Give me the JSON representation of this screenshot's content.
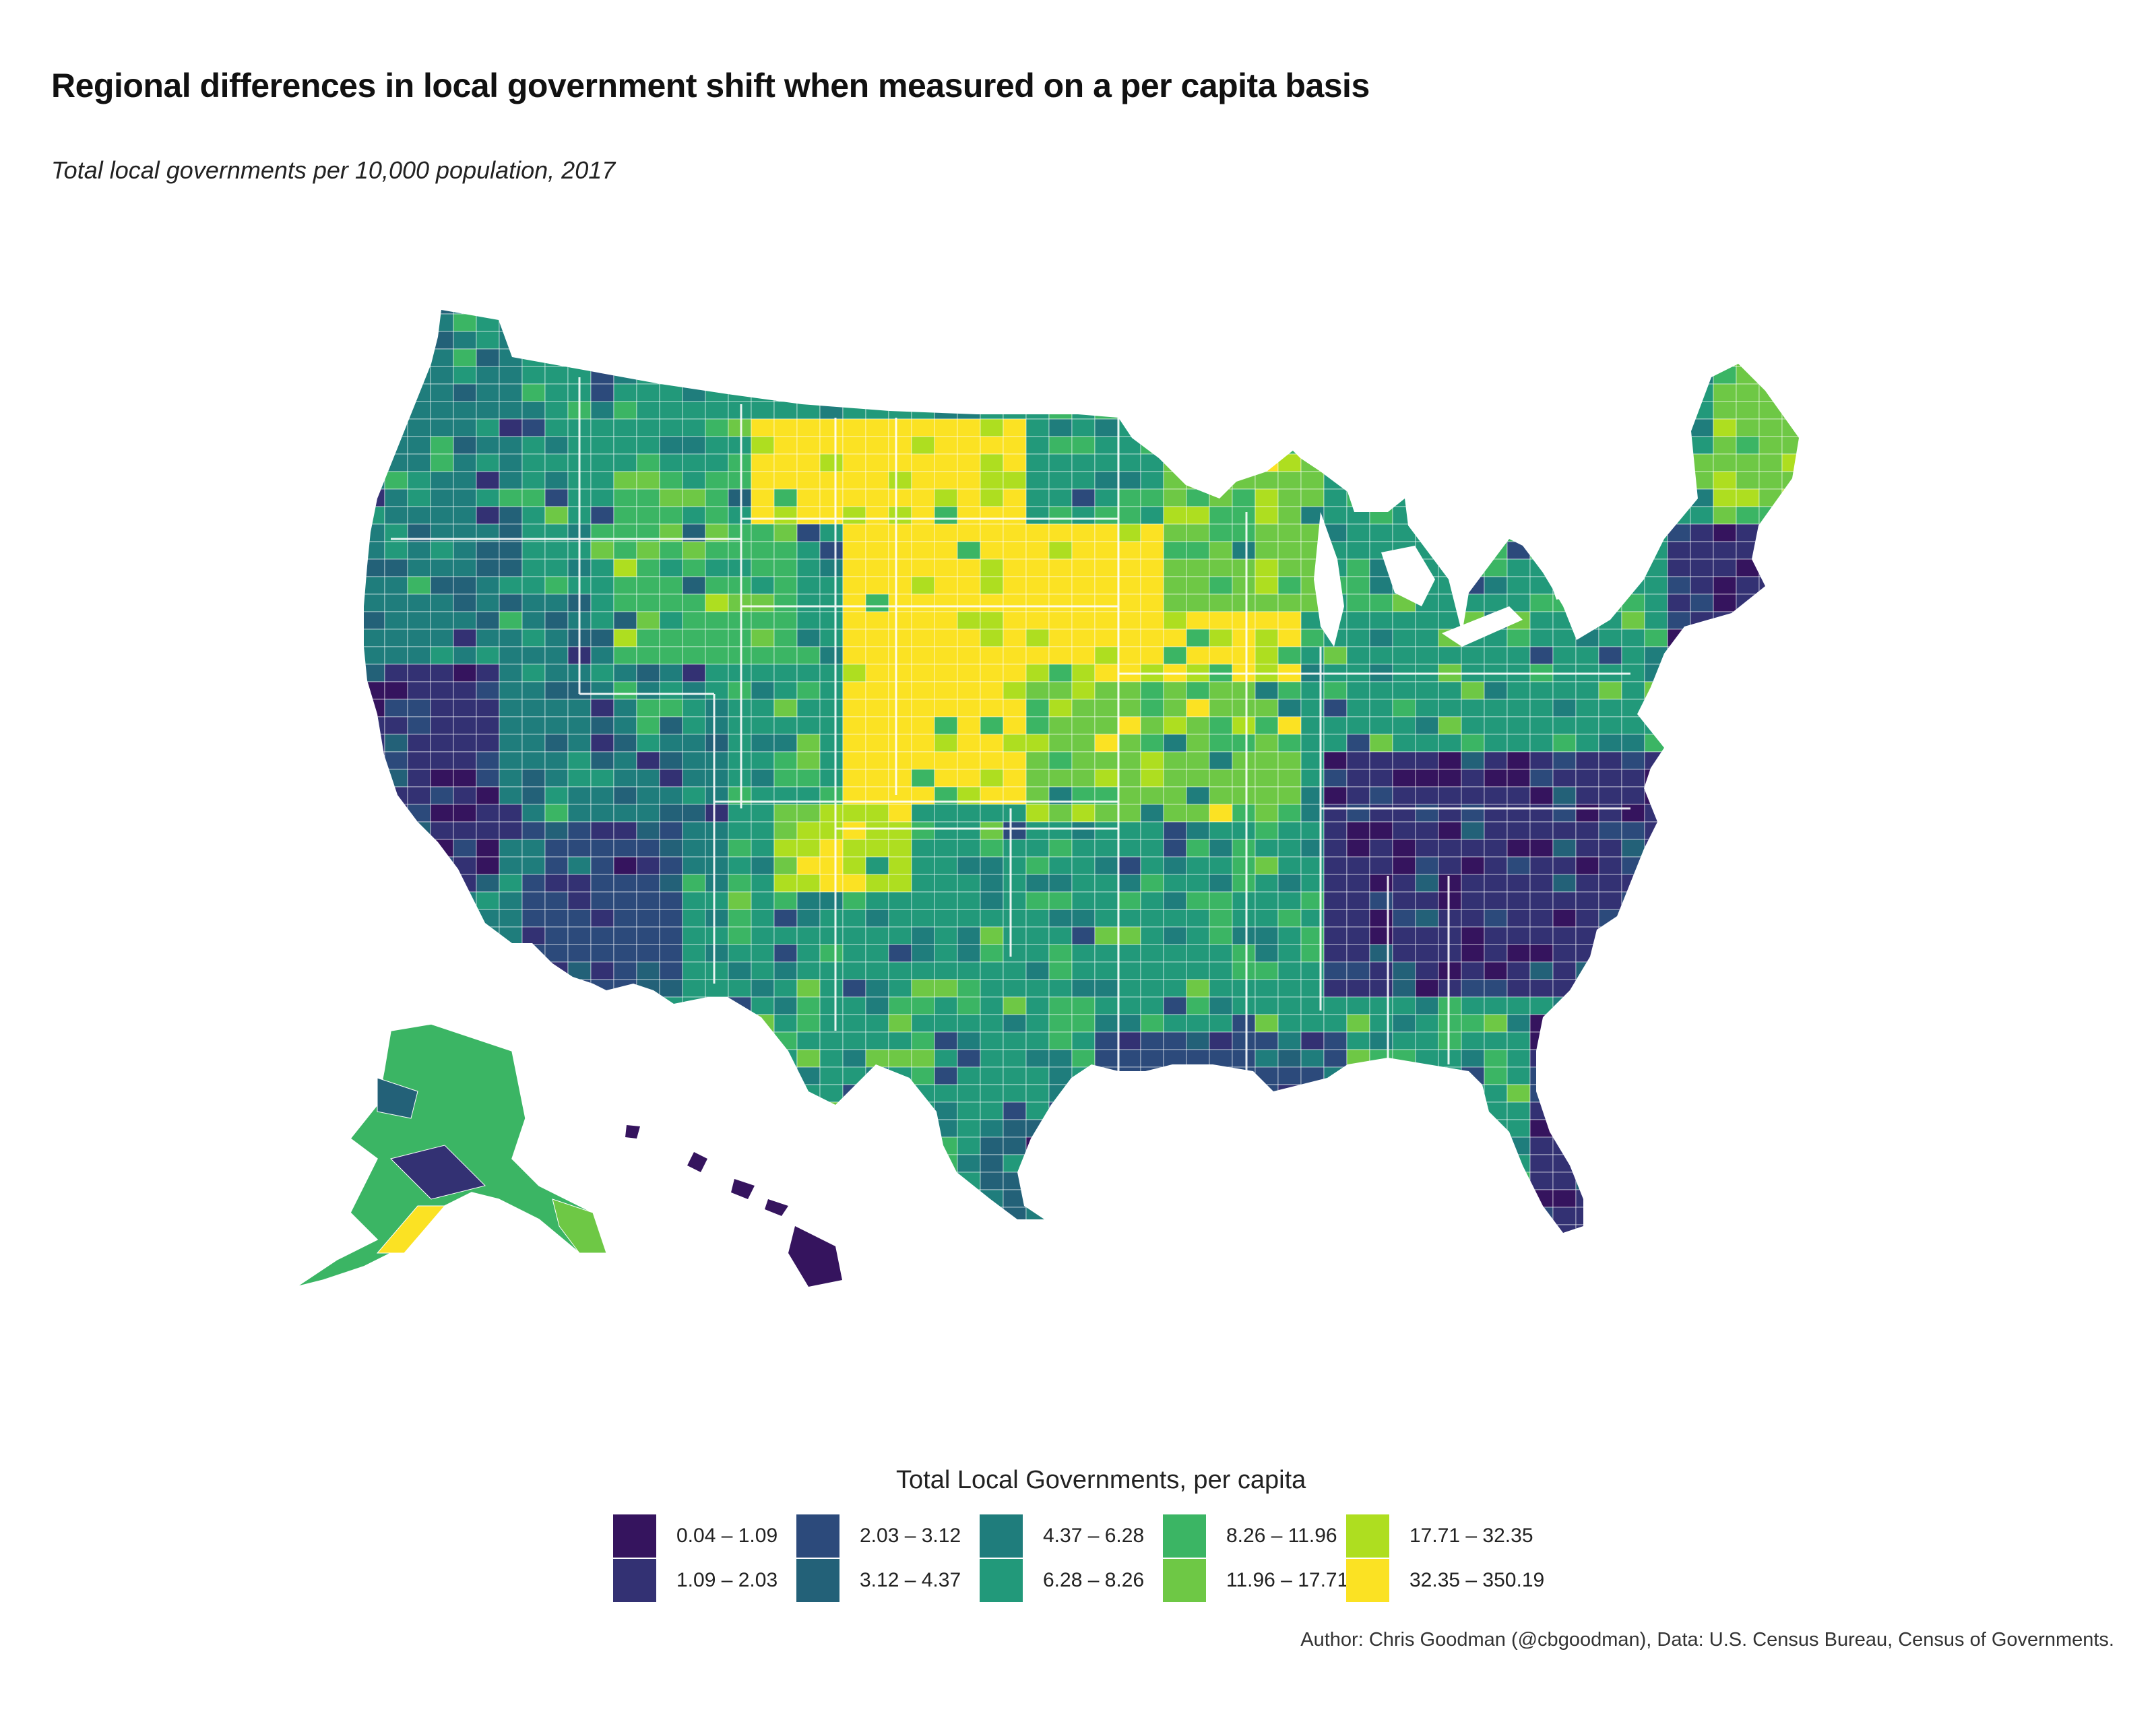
{
  "title": "Regional differences in local government shift when measured on a per capita basis",
  "subtitle": "Total local governments per 10,000 population, 2017",
  "caption": "Author: Chris Goodman (@cbgoodman), Data: U.S. Census Bureau, Census of Governments.",
  "legend": {
    "title": "Total Local Governments, per capita",
    "items": [
      {
        "label": "0.04 – 1.09",
        "color": "#35145e"
      },
      {
        "label": "1.09 – 2.03",
        "color": "#333173"
      },
      {
        "label": "2.03 – 3.12",
        "color": "#2c4a7b"
      },
      {
        "label": "3.12 – 4.37",
        "color": "#236178"
      },
      {
        "label": "4.37 – 6.28",
        "color": "#1f7d7c"
      },
      {
        "label": "6.28 – 8.26",
        "color": "#22997a"
      },
      {
        "label": "8.26 – 11.96",
        "color": "#3bb564"
      },
      {
        "label": "11.96 – 17.71",
        "color": "#6ec845"
      },
      {
        "label": "17.71 – 32.35",
        "color": "#aede20"
      },
      {
        "label": "32.35 – 350.19",
        "color": "#fbe223"
      }
    ]
  },
  "map": {
    "type": "choropleth",
    "geography": "U.S. counties",
    "classes": 10,
    "palette": "viridis",
    "boundary_color": "#ffffff"
  }
}
